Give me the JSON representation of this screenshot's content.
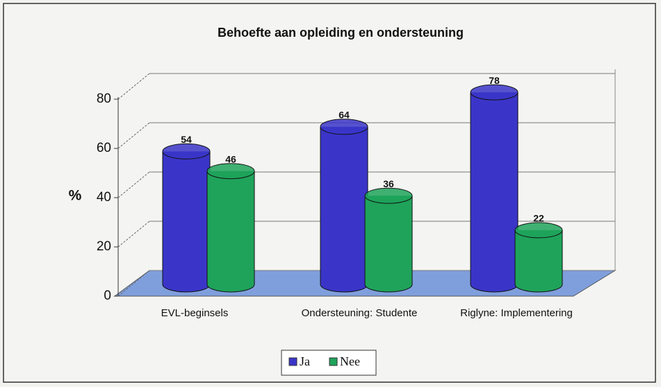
{
  "chart_data": {
    "type": "bar",
    "title": "Behoefte aan opleiding en ondersteuning",
    "y_label": "%",
    "categories": [
      "EVL-beginsels",
      "Ondersteuning: Studente",
      "Riglyne: Implementering"
    ],
    "series": [
      {
        "name": "Ja",
        "color": "#3a35c8",
        "values": [
          54,
          64,
          78
        ]
      },
      {
        "name": "Nee",
        "color": "#1fa35a",
        "values": [
          46,
          36,
          22
        ]
      }
    ],
    "ylim": [
      0,
      80
    ],
    "yticks": [
      0,
      20,
      40,
      60,
      80
    ],
    "grid": true,
    "legend": "bottom"
  }
}
